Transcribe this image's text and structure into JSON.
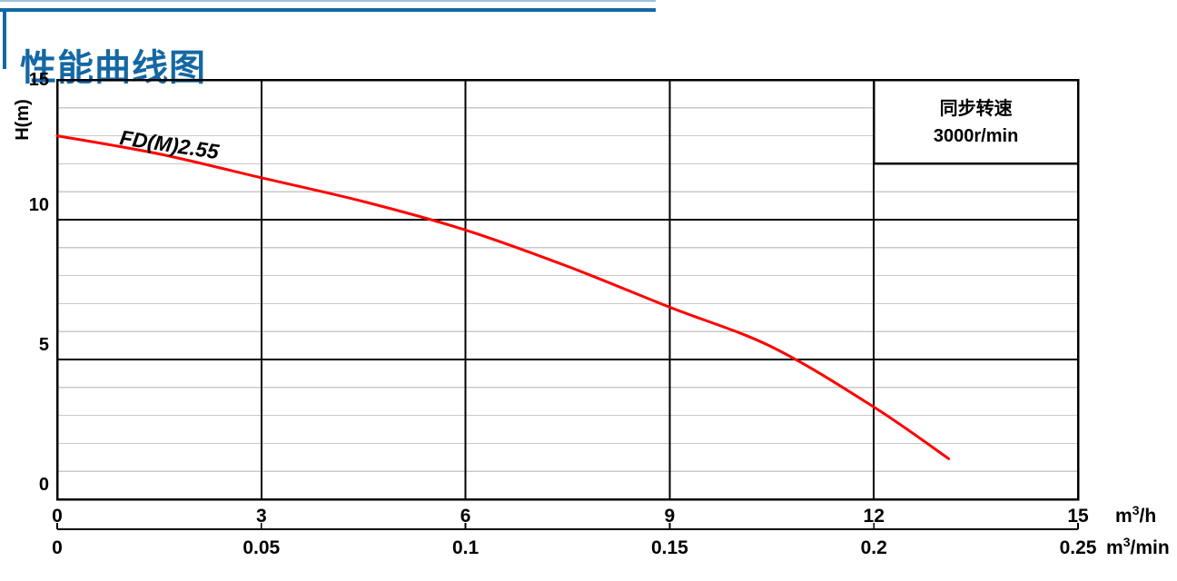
{
  "header": {
    "title": "性能曲线图"
  },
  "colors": {
    "accent": "#1368a4",
    "accent_light": "#9cc3de",
    "curve_red": "#ff0000",
    "grid_minor": "#c9c9c9",
    "grid_major": "#000000",
    "text": "#000000",
    "background": "#ffffff"
  },
  "chart_data": {
    "type": "line",
    "title": "性能曲线图",
    "curve_label": "FD(M)2.55",
    "legend": {
      "line1": "同步转速",
      "line2": "3000r/min",
      "position": "top-right"
    },
    "y_axis": {
      "label": "H(m)",
      "range": [
        0,
        15
      ],
      "tick_values": [
        0,
        5,
        10,
        15
      ],
      "tick_labels": [
        "0",
        "5",
        "10",
        "15"
      ],
      "minor_step": 1
    },
    "x_axis_primary": {
      "unit": "m³/h",
      "range": [
        0,
        15
      ],
      "tick_values": [
        0,
        3,
        6,
        9,
        12,
        15
      ],
      "tick_labels": [
        "0",
        "3",
        "6",
        "9",
        "12",
        "15"
      ]
    },
    "x_axis_secondary": {
      "unit": "m³/min",
      "range": [
        0,
        0.25
      ],
      "tick_values": [
        0,
        0.05,
        0.1,
        0.15,
        0.2,
        0.25
      ],
      "tick_labels": [
        "0",
        "0.05",
        "0.1",
        "0.15",
        "0.2",
        "0.25"
      ]
    },
    "grid": {
      "horizontal_minor_step": 1,
      "horizontal_major_values": [
        5,
        10
      ],
      "vertical_major_values": [
        3,
        6,
        9,
        12
      ],
      "grid_on": true
    },
    "series": [
      {
        "name": "FD(M)2.55",
        "color": "#ff0000",
        "points_q_h": [
          [
            0,
            13.0
          ],
          [
            1.5,
            12.35
          ],
          [
            3,
            11.5
          ],
          [
            4.5,
            10.65
          ],
          [
            6,
            9.63
          ],
          [
            7.5,
            8.33
          ],
          [
            9,
            6.87
          ],
          [
            10.5,
            5.45
          ],
          [
            12,
            3.3
          ],
          [
            13.1,
            1.45
          ]
        ]
      }
    ]
  }
}
